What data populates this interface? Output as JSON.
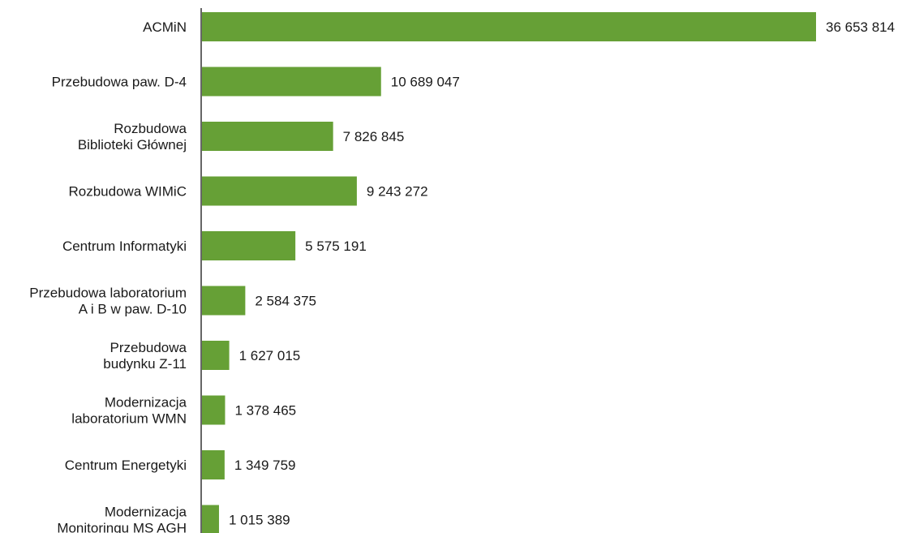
{
  "chart_data": {
    "type": "bar",
    "orientation": "horizontal",
    "title": "",
    "xlabel": "",
    "ylabel": "",
    "grid": false,
    "legend": "none",
    "bar_color": "#66a036",
    "axis_color": "#333333",
    "xlim": [
      0,
      36653814
    ],
    "categories": [
      "ACMiN",
      "Przebudowa paw. D-4",
      "Rozbudowa\nBiblioteki Głównej",
      "Rozbudowa WIMiC",
      "Centrum Informatyki",
      "Przebudowa laboratorium\nA i B w paw. D-10",
      "Przebudowa\nbudynku Z-11",
      "Modernizacja\nlaboratorium WMN",
      "Centrum Energetyki",
      "Modernizacja\nMonitoringu MS AGH"
    ],
    "values": [
      36653814,
      10689047,
      7826845,
      9243272,
      5575191,
      2584375,
      1627015,
      1378465,
      1349759,
      1015389
    ],
    "value_labels": [
      "36 653 814",
      "10 689 047",
      "7 826 845",
      "9 243 272",
      "5 575 191",
      "2 584 375",
      "1 627 015",
      "1 378 465",
      "1 349 759",
      "1 015 389"
    ]
  }
}
